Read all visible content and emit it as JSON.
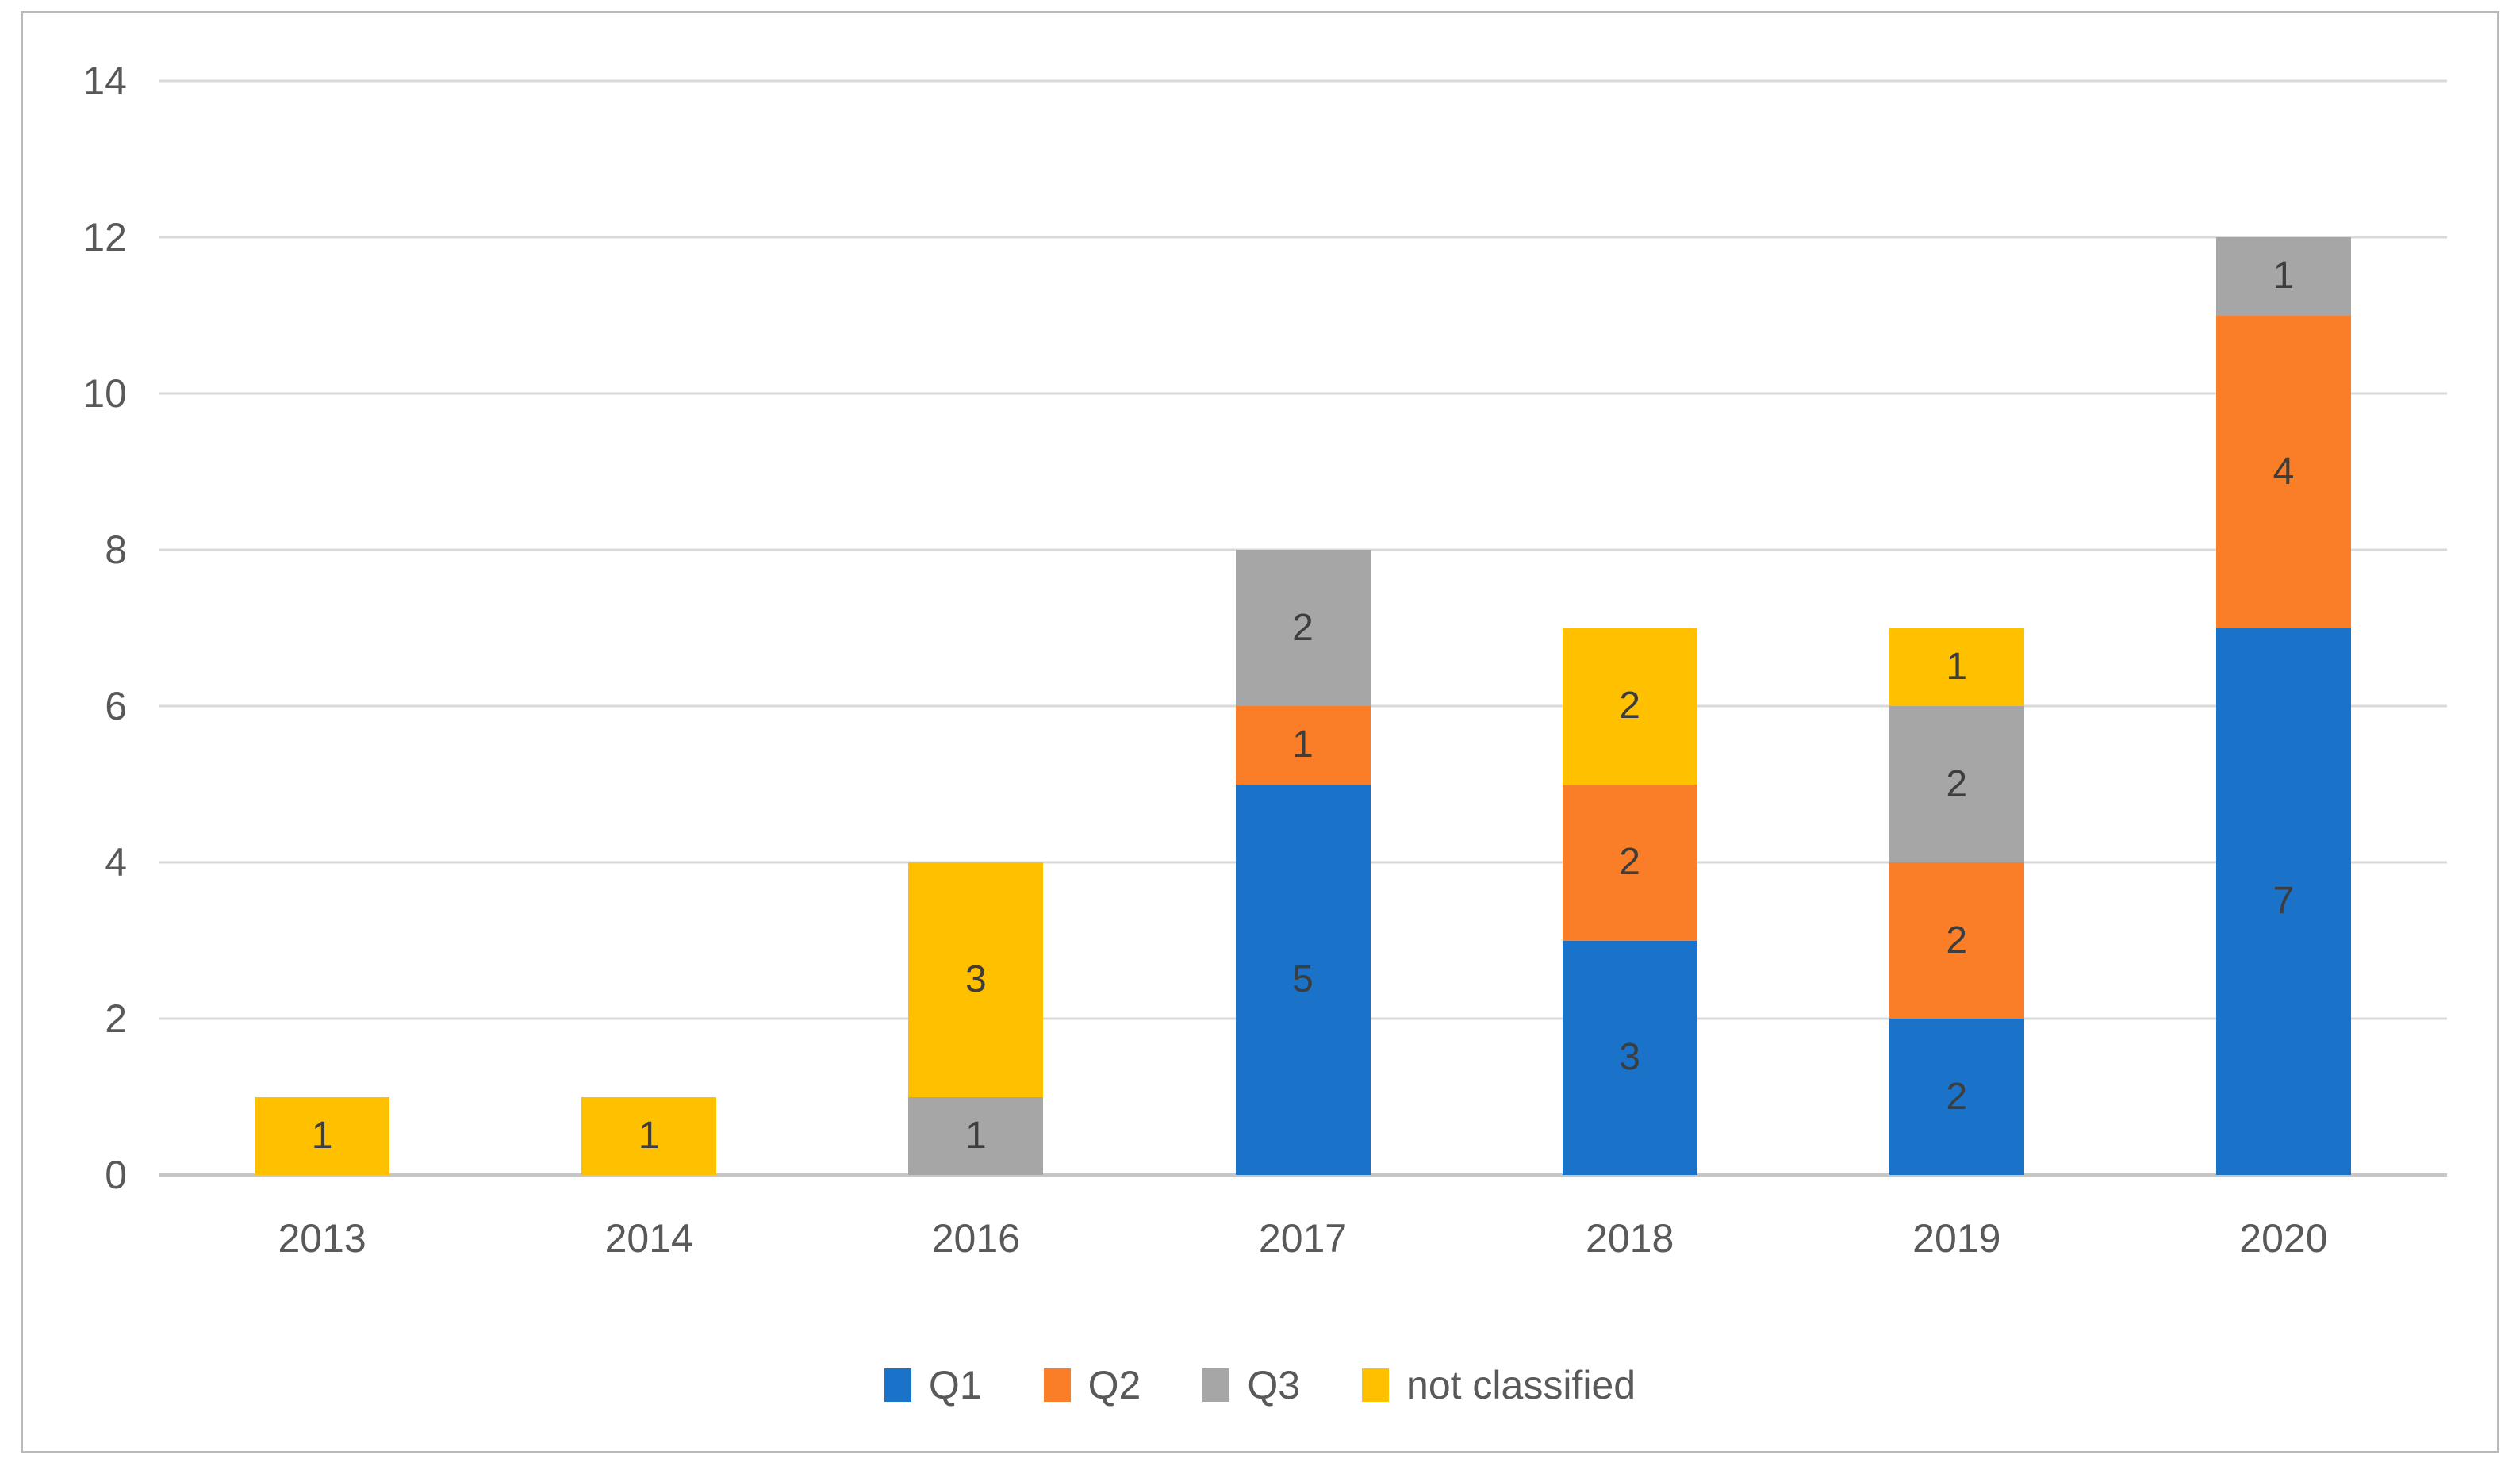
{
  "chart_data": {
    "type": "bar",
    "stacked": true,
    "title": "",
    "xlabel": "",
    "ylabel": "",
    "categories": [
      "2013",
      "2014",
      "2016",
      "2017",
      "2018",
      "2019",
      "2020"
    ],
    "series": [
      {
        "name": "Q1",
        "color": "#1a73c8",
        "values": [
          0,
          0,
          0,
          5,
          3,
          2,
          7
        ]
      },
      {
        "name": "Q2",
        "color": "#f97e27",
        "values": [
          0,
          0,
          0,
          1,
          2,
          2,
          4
        ]
      },
      {
        "name": "Q3",
        "color": "#a6a6a6",
        "values": [
          0,
          0,
          1,
          2,
          0,
          2,
          1
        ]
      },
      {
        "name": "not classified",
        "color": "#ffc000",
        "values": [
          1,
          1,
          3,
          0,
          2,
          1,
          0
        ]
      }
    ],
    "stack_totals": [
      1,
      1,
      4,
      8,
      7,
      7,
      12
    ],
    "ylim": [
      0,
      14
    ],
    "yticks": [
      0,
      2,
      4,
      6,
      8,
      10,
      12,
      14
    ],
    "grid": true,
    "data_labels": true,
    "legend_position": "bottom"
  },
  "style": {
    "gridline_color": "#d9d9d9",
    "axis_line_color": "#c6c6c6",
    "tick_label_color": "#595959",
    "data_label_color": "#3d3d3d",
    "frame_border_color": "#b9b9b9",
    "background_color": "#ffffff"
  }
}
